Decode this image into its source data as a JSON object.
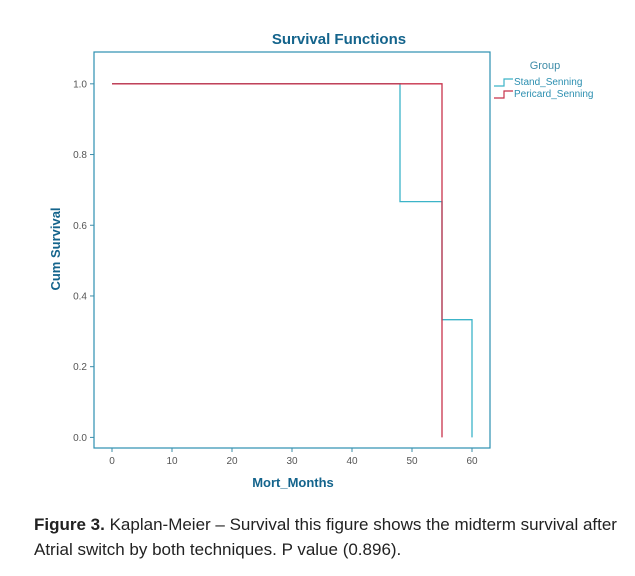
{
  "chart_data": {
    "type": "line",
    "step": true,
    "title": "Survival Functions",
    "xlabel": "Mort_Months",
    "ylabel": "Cum Survival",
    "xlim": [
      -3,
      63
    ],
    "ylim": [
      -0.03,
      1.09
    ],
    "xticks": [
      0,
      10,
      20,
      30,
      40,
      50,
      60
    ],
    "yticks": [
      "0.0",
      "0.2",
      "0.4",
      "0.6",
      "0.8",
      "1.0"
    ],
    "legend": {
      "title": "Group",
      "position": "top-right, outside plot"
    },
    "series": [
      {
        "name": "Stand_Senning",
        "color": "#3cb4c8",
        "points": [
          [
            0,
            1.0
          ],
          [
            48,
            1.0
          ],
          [
            48,
            0.667
          ],
          [
            55,
            0.667
          ],
          [
            55,
            0.333
          ],
          [
            60,
            0.333
          ],
          [
            60,
            0.0
          ]
        ]
      },
      {
        "name": "Pericard_Senning",
        "color": "#c8324b",
        "points": [
          [
            0,
            1.0
          ],
          [
            55,
            1.0
          ],
          [
            55,
            0.0
          ]
        ]
      }
    ],
    "colors": {
      "title": "#14648c",
      "axis": "#3e8ca8",
      "frame": "#2c8fb0",
      "tick_text": "#555555"
    }
  },
  "caption": {
    "label": "Figure 3.",
    "text": "Kaplan-Meier – Survival this figure shows the midterm survival after Atrial switch by both techniques. P value (0.896)."
  }
}
